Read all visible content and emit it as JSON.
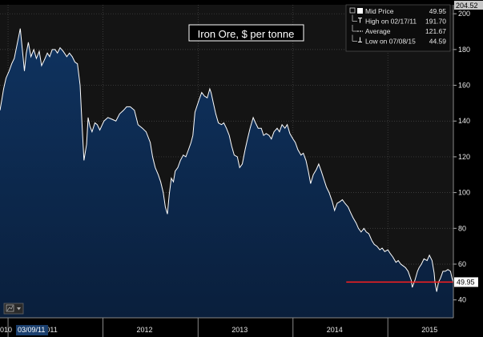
{
  "chart_data": {
    "type": "area",
    "title": "Iron Ore, $ per tonne",
    "xlabel": "",
    "ylabel": "",
    "x_range": [
      "2010-12-01",
      "2015-09-10"
    ],
    "y_range": [
      30,
      205
    ],
    "grid": true,
    "y_ticks": [
      40,
      60,
      80,
      100,
      120,
      140,
      160,
      180,
      200
    ],
    "y_max_label": "204.52",
    "x_tick_labels": [
      {
        "label": "2011",
        "date": "2011-01-01"
      },
      {
        "label": "2012",
        "date": "2012-01-01"
      },
      {
        "label": "2013",
        "date": "2013-01-01"
      },
      {
        "label": "2014",
        "date": "2014-01-01"
      },
      {
        "label": "2015",
        "date": "2015-01-01"
      }
    ],
    "cursor_labels": {
      "left": "010",
      "date": "03/09/11"
    },
    "last_value": 49.95,
    "last_value_label": "49.95",
    "series": [
      {
        "name": "Mid Price",
        "points": [
          [
            "2010-12-01",
            146
          ],
          [
            "2010-12-08",
            152
          ],
          [
            "2010-12-15",
            158
          ],
          [
            "2010-12-24",
            164
          ],
          [
            "2011-01-05",
            168
          ],
          [
            "2011-01-15",
            172
          ],
          [
            "2011-01-25",
            175
          ],
          [
            "2011-02-05",
            183
          ],
          [
            "2011-02-17",
            191.7
          ],
          [
            "2011-02-25",
            180
          ],
          [
            "2011-03-05",
            168
          ],
          [
            "2011-03-12",
            178
          ],
          [
            "2011-03-20",
            184
          ],
          [
            "2011-03-30",
            176
          ],
          [
            "2011-04-10",
            180
          ],
          [
            "2011-04-20",
            175
          ],
          [
            "2011-05-01",
            179
          ],
          [
            "2011-05-10",
            171
          ],
          [
            "2011-05-20",
            174
          ],
          [
            "2011-06-01",
            178
          ],
          [
            "2011-06-10",
            176
          ],
          [
            "2011-06-20",
            180
          ],
          [
            "2011-07-01",
            180
          ],
          [
            "2011-07-10",
            178
          ],
          [
            "2011-07-20",
            181
          ],
          [
            "2011-08-01",
            179
          ],
          [
            "2011-08-15",
            176
          ],
          [
            "2011-08-25",
            178
          ],
          [
            "2011-09-05",
            176
          ],
          [
            "2011-09-15",
            173
          ],
          [
            "2011-09-25",
            172
          ],
          [
            "2011-10-05",
            160
          ],
          [
            "2011-10-12",
            140
          ],
          [
            "2011-10-20",
            118
          ],
          [
            "2011-10-30",
            127
          ],
          [
            "2011-11-05",
            142
          ],
          [
            "2011-11-12",
            137
          ],
          [
            "2011-11-20",
            134
          ],
          [
            "2011-12-01",
            139
          ],
          [
            "2011-12-10",
            138
          ],
          [
            "2011-12-20",
            135
          ],
          [
            "2012-01-05",
            140
          ],
          [
            "2012-01-20",
            142
          ],
          [
            "2012-02-05",
            141
          ],
          [
            "2012-02-20",
            140
          ],
          [
            "2012-03-05",
            144
          ],
          [
            "2012-03-20",
            146
          ],
          [
            "2012-04-01",
            148
          ],
          [
            "2012-04-15",
            148
          ],
          [
            "2012-05-01",
            146
          ],
          [
            "2012-05-15",
            138
          ],
          [
            "2012-06-01",
            136
          ],
          [
            "2012-06-15",
            134
          ],
          [
            "2012-07-01",
            128
          ],
          [
            "2012-07-10",
            120
          ],
          [
            "2012-07-20",
            114
          ],
          [
            "2012-08-01",
            110
          ],
          [
            "2012-08-10",
            106
          ],
          [
            "2012-08-20",
            100
          ],
          [
            "2012-08-28",
            92
          ],
          [
            "2012-09-05",
            88
          ],
          [
            "2012-09-12",
            99
          ],
          [
            "2012-09-20",
            108
          ],
          [
            "2012-09-28",
            106
          ],
          [
            "2012-10-05",
            112
          ],
          [
            "2012-10-15",
            114
          ],
          [
            "2012-10-25",
            118
          ],
          [
            "2012-11-05",
            121
          ],
          [
            "2012-11-15",
            120
          ],
          [
            "2012-11-25",
            124
          ],
          [
            "2012-12-05",
            128
          ],
          [
            "2012-12-12",
            132
          ],
          [
            "2012-12-20",
            145
          ],
          [
            "2013-01-05",
            152
          ],
          [
            "2013-01-15",
            156
          ],
          [
            "2013-01-25",
            154
          ],
          [
            "2013-02-05",
            153
          ],
          [
            "2013-02-15",
            158
          ],
          [
            "2013-02-20",
            156
          ],
          [
            "2013-03-01",
            150
          ],
          [
            "2013-03-10",
            144
          ],
          [
            "2013-03-20",
            139
          ],
          [
            "2013-04-01",
            138
          ],
          [
            "2013-04-10",
            139
          ],
          [
            "2013-04-20",
            136
          ],
          [
            "2013-05-01",
            132
          ],
          [
            "2013-05-10",
            126
          ],
          [
            "2013-05-20",
            121
          ],
          [
            "2013-06-01",
            120
          ],
          [
            "2013-06-10",
            114
          ],
          [
            "2013-06-20",
            116
          ],
          [
            "2013-07-01",
            124
          ],
          [
            "2013-07-10",
            130
          ],
          [
            "2013-07-20",
            136
          ],
          [
            "2013-08-01",
            142
          ],
          [
            "2013-08-10",
            139
          ],
          [
            "2013-08-20",
            136
          ],
          [
            "2013-09-01",
            136
          ],
          [
            "2013-09-10",
            132
          ],
          [
            "2013-09-20",
            133
          ],
          [
            "2013-10-01",
            132
          ],
          [
            "2013-10-10",
            130
          ],
          [
            "2013-10-20",
            134
          ],
          [
            "2013-11-01",
            136
          ],
          [
            "2013-11-10",
            134
          ],
          [
            "2013-11-20",
            138
          ],
          [
            "2013-12-01",
            136
          ],
          [
            "2013-12-10",
            138
          ],
          [
            "2013-12-20",
            133
          ],
          [
            "2014-01-01",
            130
          ],
          [
            "2014-01-10",
            128
          ],
          [
            "2014-01-20",
            124
          ],
          [
            "2014-02-01",
            121
          ],
          [
            "2014-02-10",
            122
          ],
          [
            "2014-02-20",
            118
          ],
          [
            "2014-03-01",
            112
          ],
          [
            "2014-03-10",
            105
          ],
          [
            "2014-03-20",
            110
          ],
          [
            "2014-04-01",
            113
          ],
          [
            "2014-04-10",
            116
          ],
          [
            "2014-04-20",
            112
          ],
          [
            "2014-05-01",
            107
          ],
          [
            "2014-05-10",
            103
          ],
          [
            "2014-05-20",
            100
          ],
          [
            "2014-06-01",
            95
          ],
          [
            "2014-06-10",
            90
          ],
          [
            "2014-06-20",
            94
          ],
          [
            "2014-07-01",
            95
          ],
          [
            "2014-07-10",
            96
          ],
          [
            "2014-07-20",
            94
          ],
          [
            "2014-08-01",
            92
          ],
          [
            "2014-08-10",
            89
          ],
          [
            "2014-08-20",
            86
          ],
          [
            "2014-09-01",
            83
          ],
          [
            "2014-09-10",
            80
          ],
          [
            "2014-09-20",
            78
          ],
          [
            "2014-10-01",
            80
          ],
          [
            "2014-10-10",
            78
          ],
          [
            "2014-10-20",
            77
          ],
          [
            "2014-11-01",
            73
          ],
          [
            "2014-11-10",
            71
          ],
          [
            "2014-11-20",
            70
          ],
          [
            "2014-12-01",
            68
          ],
          [
            "2014-12-10",
            69
          ],
          [
            "2014-12-20",
            67
          ],
          [
            "2015-01-01",
            68
          ],
          [
            "2015-01-10",
            66
          ],
          [
            "2015-01-20",
            64
          ],
          [
            "2015-02-01",
            61
          ],
          [
            "2015-02-10",
            62
          ],
          [
            "2015-02-20",
            60
          ],
          [
            "2015-03-01",
            59
          ],
          [
            "2015-03-10",
            58
          ],
          [
            "2015-03-20",
            56
          ],
          [
            "2015-04-01",
            51
          ],
          [
            "2015-04-05",
            47
          ],
          [
            "2015-04-15",
            51
          ],
          [
            "2015-04-25",
            56
          ],
          [
            "2015-05-01",
            58
          ],
          [
            "2015-05-10",
            60
          ],
          [
            "2015-05-20",
            63
          ],
          [
            "2015-06-01",
            62
          ],
          [
            "2015-06-10",
            65
          ],
          [
            "2015-06-20",
            62
          ],
          [
            "2015-06-28",
            55
          ],
          [
            "2015-07-01",
            50
          ],
          [
            "2015-07-08",
            44.59
          ],
          [
            "2015-07-15",
            50
          ],
          [
            "2015-07-22",
            52
          ],
          [
            "2015-08-01",
            56
          ],
          [
            "2015-08-10",
            56
          ],
          [
            "2015-08-20",
            57
          ],
          [
            "2015-08-30",
            56
          ],
          [
            "2015-09-05",
            52
          ],
          [
            "2015-09-10",
            49.95
          ]
        ]
      }
    ],
    "reference_line": {
      "value": 49.95,
      "color": "#ff1f1f",
      "start": "2014-07-25"
    },
    "legend": {
      "position": "top-right",
      "items": [
        {
          "label": "Mid Price",
          "value": "49.95"
        },
        {
          "label": "High on 02/17/11",
          "value": "191.70"
        },
        {
          "label": "Average",
          "value": "121.67"
        },
        {
          "label": "Low on 07/08/15",
          "value": "44.59"
        }
      ]
    },
    "colors": {
      "background": "#000000",
      "plot_background": "#141414",
      "grid": "#4a4a4a",
      "fill_top": "#0f3360",
      "fill_bottom": "#0a1f3c",
      "line": "#ffffff",
      "reference": "#ff1f1f",
      "axis_text": "#e8e8e8"
    }
  }
}
